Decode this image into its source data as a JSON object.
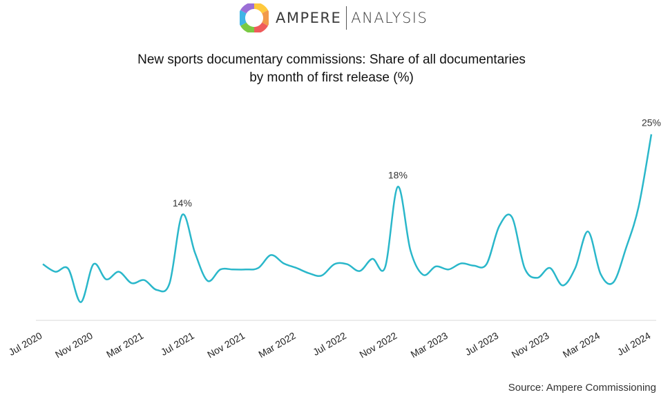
{
  "header": {
    "brand_left": "AMPERE",
    "brand_right": "ANALYSIS"
  },
  "chart_data": {
    "type": "line",
    "title": "New sports documentary commissions: Share of all documentaries",
    "subtitle": "by month of first release (%)",
    "source": "Source: Ampere Commissioning",
    "x_tick_labels": [
      "Jul 2020",
      "Nov 2020",
      "Mar 2021",
      "Jul 2021",
      "Nov 2021",
      "Mar 2022",
      "Jul 2022",
      "Nov 2022",
      "Mar 2023",
      "Jul 2023",
      "Nov 2023",
      "Mar 2024",
      "Jul 2024"
    ],
    "x": [
      "Jul 2020",
      "Aug 2020",
      "Sep 2020",
      "Oct 2020",
      "Nov 2020",
      "Dec 2020",
      "Jan 2021",
      "Feb 2021",
      "Mar 2021",
      "Apr 2021",
      "May 2021",
      "Jun 2021",
      "Jul 2021",
      "Aug 2021",
      "Sep 2021",
      "Oct 2021",
      "Nov 2021",
      "Dec 2021",
      "Jan 2022",
      "Feb 2022",
      "Mar 2022",
      "Apr 2022",
      "May 2022",
      "Jun 2022",
      "Jul 2022",
      "Aug 2022",
      "Sep 2022",
      "Oct 2022",
      "Nov 2022",
      "Dec 2022",
      "Jan 2023",
      "Feb 2023",
      "Mar 2023",
      "Apr 2023",
      "May 2023",
      "Jun 2023",
      "Jul 2023",
      "Aug 2023",
      "Sep 2023",
      "Oct 2023",
      "Nov 2023",
      "Dec 2023",
      "Jan 2024",
      "Feb 2024",
      "Mar 2024",
      "Apr 2024",
      "May 2024",
      "Jun 2024",
      "Jul 2024"
    ],
    "series": [
      {
        "color": "#2ab7ca",
        "values": [
          7.4,
          6.4,
          6.8,
          2.4,
          7.4,
          5.4,
          6.4,
          4.9,
          5.3,
          4.0,
          4.9,
          13.9,
          8.9,
          5.2,
          6.7,
          6.7,
          6.7,
          6.9,
          8.6,
          7.5,
          6.9,
          6.2,
          5.9,
          7.4,
          7.4,
          6.5,
          8.1,
          7.0,
          17.6,
          9.2,
          6.0,
          7.1,
          6.7,
          7.5,
          7.2,
          7.4,
          12.4,
          13.6,
          6.9,
          5.6,
          6.9,
          4.6,
          6.9,
          11.7,
          6.1,
          5.0,
          9.5,
          15.0,
          24.5
        ]
      }
    ],
    "data_labels": [
      {
        "index": 11,
        "text": "14%"
      },
      {
        "index": 28,
        "text": "18%"
      },
      {
        "index": 48,
        "text": "25%"
      }
    ],
    "ylim": [
      0,
      27
    ],
    "grid": false,
    "legend": "none"
  }
}
